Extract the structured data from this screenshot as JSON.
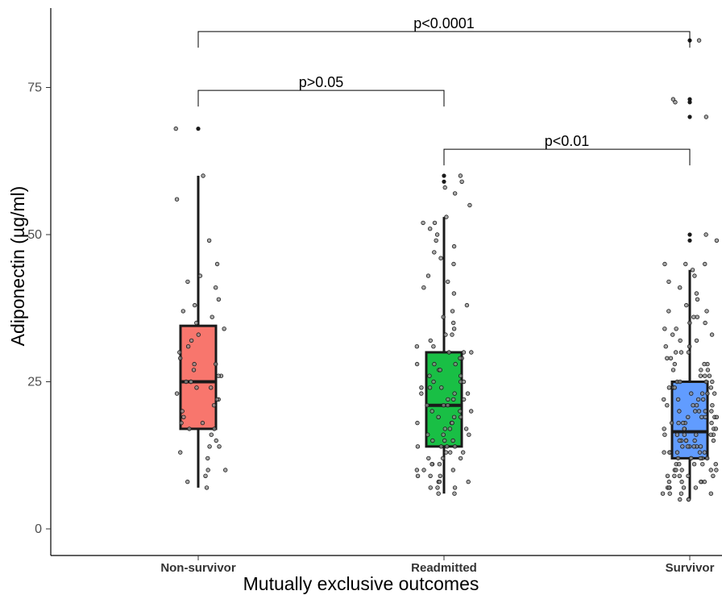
{
  "chart_data": {
    "type": "box",
    "title": "",
    "xlabel": "Mutually exclusive outcomes",
    "ylabel": "Adiponectin (µg/ml)",
    "ylim": [
      -5,
      88
    ],
    "yticks": [
      0,
      25,
      50,
      75
    ],
    "grid": false,
    "legend": "none",
    "categories": [
      "Non-survivor",
      "Readmitted",
      "Survivor"
    ],
    "boxes": [
      {
        "category": "Non-survivor",
        "color": "#F8766D",
        "min": 7,
        "q1": 17,
        "median": 25,
        "q3": 34.5,
        "max": 60,
        "outliers": [
          68
        ],
        "points": [
          7,
          8,
          9,
          10,
          10,
          12,
          13,
          14,
          14,
          15,
          16,
          17,
          17,
          18,
          18,
          19,
          20,
          21,
          22,
          22,
          23,
          24,
          24,
          25,
          25,
          25,
          26,
          26,
          27,
          28,
          28,
          29,
          30,
          31,
          32,
          33,
          34,
          35,
          36,
          37,
          38,
          39,
          41,
          42,
          43,
          45,
          49,
          56,
          60,
          68
        ]
      },
      {
        "category": "Readmitted",
        "color": "#19BF45",
        "min": 6,
        "q1": 14,
        "median": 21,
        "q3": 30,
        "max": 53,
        "outliers": [
          60,
          59
        ],
        "points": [
          6,
          6,
          7,
          7,
          7,
          8,
          8,
          8,
          9,
          9,
          9,
          10,
          10,
          10,
          11,
          11,
          11,
          12,
          12,
          12,
          13,
          13,
          13,
          14,
          14,
          14,
          14,
          15,
          15,
          15,
          16,
          16,
          16,
          17,
          17,
          17,
          18,
          18,
          18,
          19,
          19,
          19,
          20,
          20,
          20,
          21,
          21,
          21,
          22,
          22,
          22,
          23,
          23,
          23,
          24,
          24,
          24,
          25,
          25,
          25,
          26,
          26,
          27,
          27,
          28,
          28,
          28,
          29,
          29,
          30,
          30,
          30,
          31,
          31,
          32,
          33,
          33,
          34,
          35,
          36,
          37,
          38,
          40,
          41,
          42,
          43,
          45,
          46,
          47,
          48,
          49,
          50,
          51,
          52,
          52,
          53,
          55,
          57,
          58,
          59,
          60
        ]
      },
      {
        "category": "Survivor",
        "color": "#619CFF",
        "min": 5,
        "q1": 12,
        "median": 16.5,
        "q3": 25,
        "max": 44,
        "outliers": [
          83,
          73,
          72.5,
          70,
          50,
          49
        ],
        "points": [
          5,
          5,
          5,
          6,
          6,
          6,
          6,
          7,
          7,
          7,
          7,
          7,
          8,
          8,
          8,
          8,
          8,
          9,
          9,
          9,
          9,
          9,
          10,
          10,
          10,
          10,
          10,
          11,
          11,
          11,
          11,
          11,
          12,
          12,
          12,
          12,
          12,
          12,
          13,
          13,
          13,
          13,
          13,
          13,
          14,
          14,
          14,
          14,
          14,
          14,
          15,
          15,
          15,
          15,
          15,
          15,
          16,
          16,
          16,
          16,
          16,
          16,
          17,
          17,
          17,
          17,
          17,
          18,
          18,
          18,
          18,
          18,
          19,
          19,
          19,
          19,
          19,
          20,
          20,
          20,
          20,
          20,
          21,
          21,
          21,
          21,
          22,
          22,
          22,
          22,
          23,
          23,
          23,
          23,
          24,
          24,
          24,
          24,
          25,
          25,
          25,
          25,
          26,
          26,
          26,
          27,
          27,
          27,
          28,
          28,
          28,
          29,
          29,
          30,
          30,
          30,
          31,
          31,
          32,
          32,
          33,
          33,
          34,
          34,
          35,
          35,
          36,
          36,
          37,
          37,
          38,
          39,
          40,
          41,
          42,
          43,
          44,
          45,
          45,
          45,
          49,
          50,
          70,
          72.5,
          73,
          83
        ]
      }
    ],
    "significance": [
      {
        "from": "Non-survivor",
        "to": "Survivor",
        "label": "p<0.0001",
        "y": 84.5
      },
      {
        "from": "Non-survivor",
        "to": "Readmitted",
        "label": "p>0.05",
        "y": 74.5
      },
      {
        "from": "Readmitted",
        "to": "Survivor",
        "label": "p<0.01",
        "y": 64.5
      }
    ]
  }
}
